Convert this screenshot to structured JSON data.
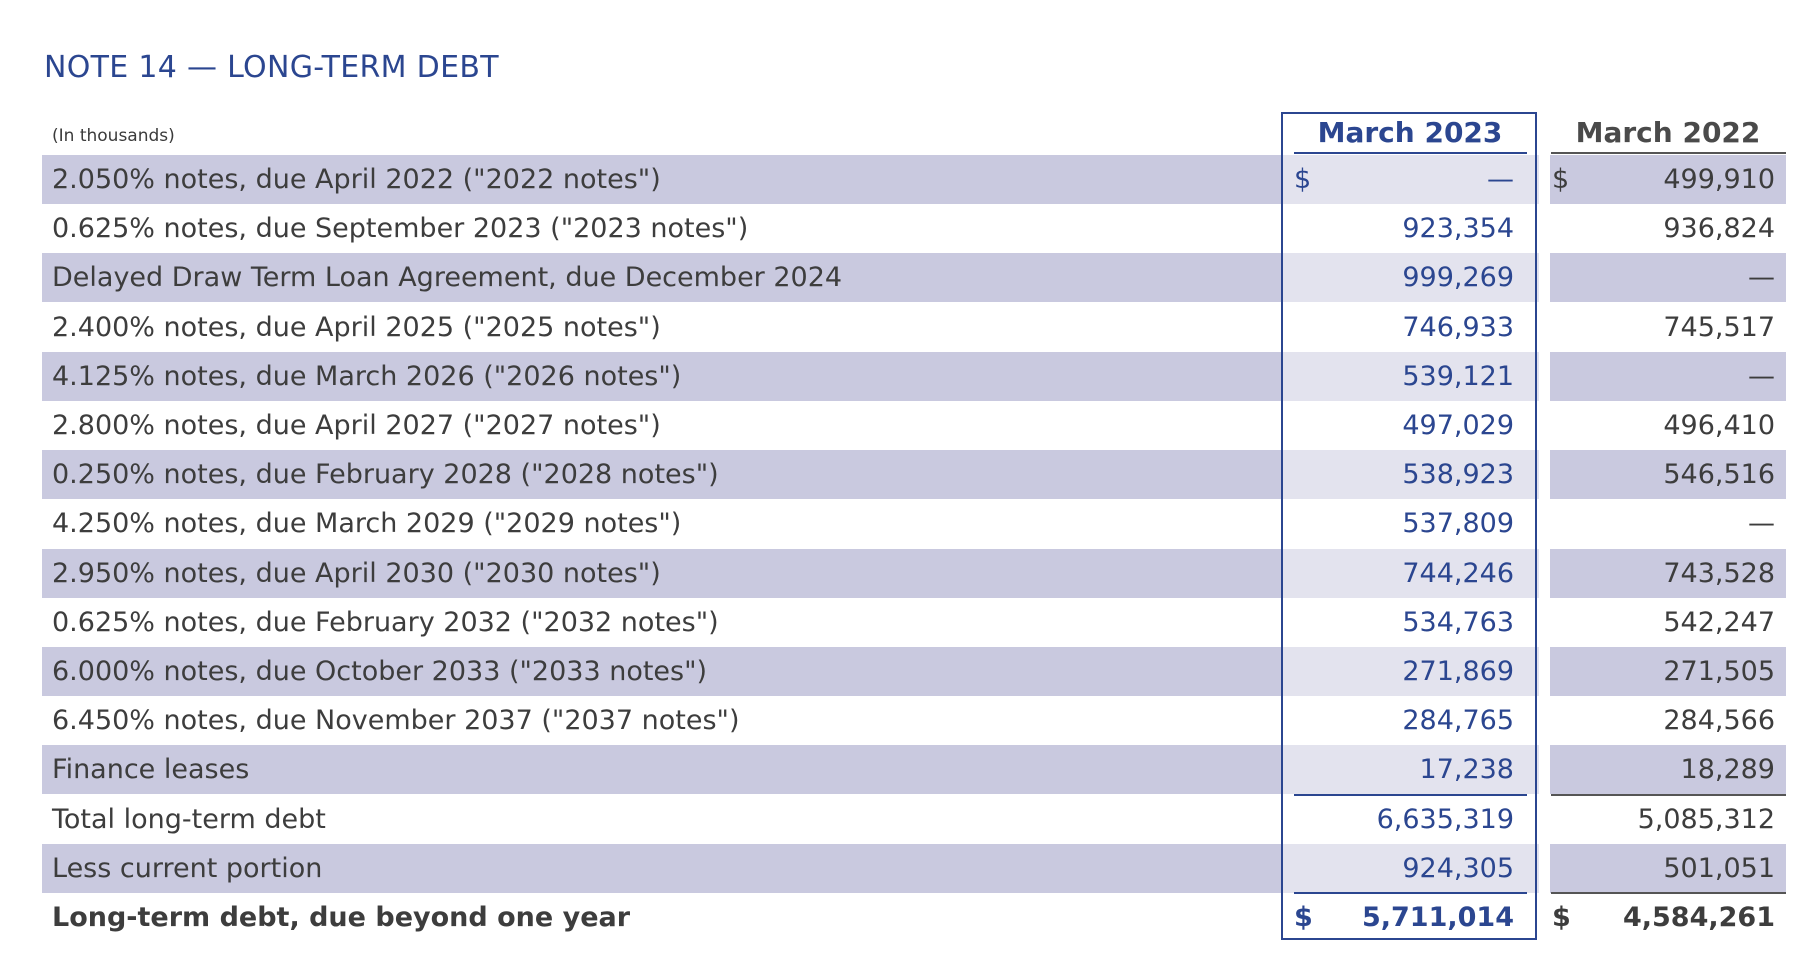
{
  "title": "NOTE 14 — LONG-TERM DEBT",
  "units": "(In thousands)",
  "columns": [
    "March 2023",
    "March 2022"
  ],
  "rows": [
    {
      "label": "2.050% notes, due April 2022 (\"2022 notes\")",
      "cur_sign": "$",
      "v2023": "—",
      "prev_sign": "$",
      "v2022": "499,910",
      "shaded": true
    },
    {
      "label": "0.625% notes, due September 2023 (\"2023 notes\")",
      "cur_sign": "",
      "v2023": "923,354",
      "prev_sign": "",
      "v2022": "936,824",
      "shaded": false
    },
    {
      "label": "Delayed Draw Term Loan Agreement, due December 2024",
      "cur_sign": "",
      "v2023": "999,269",
      "prev_sign": "",
      "v2022": "—",
      "shaded": true
    },
    {
      "label": "2.400% notes, due April 2025 (\"2025 notes\")",
      "cur_sign": "",
      "v2023": "746,933",
      "prev_sign": "",
      "v2022": "745,517",
      "shaded": false
    },
    {
      "label": "4.125% notes, due March 2026 (\"2026 notes\")",
      "cur_sign": "",
      "v2023": "539,121",
      "prev_sign": "",
      "v2022": "—",
      "shaded": true
    },
    {
      "label": "2.800% notes, due April 2027 (\"2027 notes\")",
      "cur_sign": "",
      "v2023": "497,029",
      "prev_sign": "",
      "v2022": "496,410",
      "shaded": false
    },
    {
      "label": "0.250% notes, due February 2028 (\"2028 notes\")",
      "cur_sign": "",
      "v2023": "538,923",
      "prev_sign": "",
      "v2022": "546,516",
      "shaded": true
    },
    {
      "label": "4.250% notes, due March 2029 (\"2029 notes\")",
      "cur_sign": "",
      "v2023": "537,809",
      "prev_sign": "",
      "v2022": "—",
      "shaded": false
    },
    {
      "label": "2.950% notes, due April 2030 (\"2030 notes\")",
      "cur_sign": "",
      "v2023": "744,246",
      "prev_sign": "",
      "v2022": "743,528",
      "shaded": true
    },
    {
      "label": "0.625% notes, due February 2032 (\"2032 notes\")",
      "cur_sign": "",
      "v2023": "534,763",
      "prev_sign": "",
      "v2022": "542,247",
      "shaded": false
    },
    {
      "label": "6.000% notes, due October 2033 (\"2033 notes\")",
      "cur_sign": "",
      "v2023": "271,869",
      "prev_sign": "",
      "v2022": "271,505",
      "shaded": true
    },
    {
      "label": "6.450% notes, due November 2037 (\"2037 notes\")",
      "cur_sign": "",
      "v2023": "284,765",
      "prev_sign": "",
      "v2022": "284,566",
      "shaded": false
    },
    {
      "label": "Finance leases",
      "cur_sign": "",
      "v2023": "17,238",
      "prev_sign": "",
      "v2022": "18,289",
      "shaded": true
    },
    {
      "label": "Total long-term debt",
      "cur_sign": "",
      "v2023": "6,635,319",
      "prev_sign": "",
      "v2022": "5,085,312",
      "shaded": false
    },
    {
      "label": "Less current portion",
      "cur_sign": "",
      "v2023": "924,305",
      "prev_sign": "",
      "v2022": "501,051",
      "shaded": true
    },
    {
      "label": "Long-term debt, due beyond one year",
      "cur_sign": "$",
      "v2023": "5,711,014",
      "prev_sign": "$",
      "v2022": "4,584,261",
      "shaded": false,
      "bold": true
    }
  ]
}
